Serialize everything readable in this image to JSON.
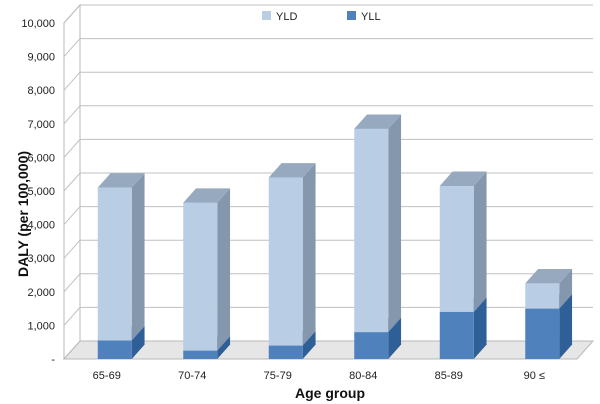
{
  "chart_data": {
    "type": "bar",
    "stacked": true,
    "style": "3d",
    "title": "",
    "xlabel": "Age group",
    "ylabel": "DALY (per 100,000)",
    "ylim": [
      0,
      10000
    ],
    "ytick_values": [
      0,
      1000,
      2000,
      3000,
      4000,
      5000,
      6000,
      7000,
      8000,
      9000,
      10000
    ],
    "ytick_labels": [
      "-",
      "1,000",
      "2,000",
      "3,000",
      "4,000",
      "5,000",
      "6,000",
      "7,000",
      "8,000",
      "9,000",
      "10,000"
    ],
    "categories": [
      "65-69",
      "70-74",
      "75-79",
      "80-84",
      "85-89",
      "90 ≤"
    ],
    "series": [
      {
        "name": "YLL",
        "values": [
          550,
          250,
          400,
          800,
          1400,
          1500
        ]
      },
      {
        "name": "YLD",
        "values": [
          4550,
          4400,
          5000,
          6050,
          3750,
          750
        ]
      }
    ],
    "legend": {
      "position": "top-center",
      "entries": [
        "YLD",
        "YLL"
      ]
    },
    "colors": {
      "YLD_front": "#b9cde5",
      "YLD_side": "#8497ad",
      "YLD_top": "#96a9bf",
      "YLL_front": "#4f81bd",
      "YLL_side": "#2f5f97",
      "YLL_top": "#3c6ca5",
      "grid": "#c0c0c0",
      "wall": "#ffffff",
      "floor": "#e6e6e6"
    }
  }
}
